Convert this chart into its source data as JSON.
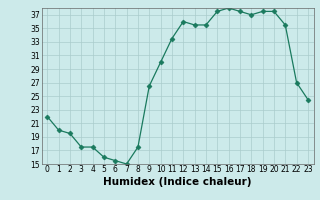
{
  "x": [
    0,
    1,
    2,
    3,
    4,
    5,
    6,
    7,
    8,
    9,
    10,
    11,
    12,
    13,
    14,
    15,
    16,
    17,
    18,
    19,
    20,
    21,
    22,
    23
  ],
  "y": [
    22,
    20,
    19.5,
    17.5,
    17.5,
    16,
    15.5,
    15,
    17.5,
    26.5,
    30,
    33.5,
    36,
    35.5,
    35.5,
    37.5,
    38,
    37.5,
    37,
    37.5,
    37.5,
    35.5,
    27,
    24.5
  ],
  "line_color": "#1a7a5e",
  "marker": "D",
  "marker_size": 2.5,
  "bg_color": "#cceaea",
  "grid_color": "#aacccc",
  "xlabel": "Humidex (Indice chaleur)",
  "ylim": [
    15,
    38
  ],
  "xlim": [
    -0.5,
    23.5
  ],
  "yticks": [
    15,
    17,
    19,
    21,
    23,
    25,
    27,
    29,
    31,
    33,
    35,
    37
  ],
  "xticks": [
    0,
    1,
    2,
    3,
    4,
    5,
    6,
    7,
    8,
    9,
    10,
    11,
    12,
    13,
    14,
    15,
    16,
    17,
    18,
    19,
    20,
    21,
    22,
    23
  ],
  "tick_fontsize": 5.5,
  "xlabel_fontsize": 7.5,
  "linewidth": 0.9
}
